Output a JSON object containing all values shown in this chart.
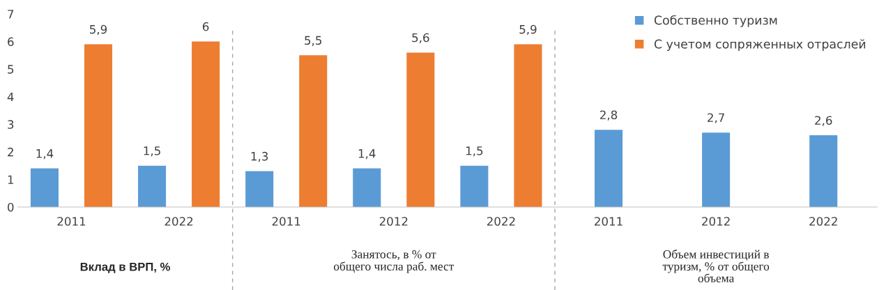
{
  "chart_data": {
    "type": "bar",
    "categories": [
      "2011",
      "2022",
      "2011",
      "2012",
      "2022",
      "2011",
      "2012",
      "2022"
    ],
    "series": [
      {
        "name": "Собственно туризм",
        "color": "#5b9bd5",
        "values": [
          1.4,
          1.5,
          1.3,
          1.4,
          1.5,
          2.8,
          2.7,
          2.6
        ],
        "value_labels": [
          "1,4",
          "1,5",
          "1,3",
          "1,4",
          "1,5",
          "2,8",
          "2,7",
          "2,6"
        ]
      },
      {
        "name": "С учетом сопряженных отраслей",
        "color": "#ed7d31",
        "values": [
          5.9,
          6,
          5.5,
          5.6,
          5.9,
          null,
          null,
          null
        ],
        "value_labels": [
          "5,9",
          "6",
          "5,5",
          "5,6",
          "5,9",
          null,
          null,
          null
        ]
      }
    ],
    "ylim": [
      0,
      7
    ],
    "yticks": [
      0,
      1,
      2,
      3,
      4,
      5,
      6,
      7
    ],
    "annotations": [
      "Вклад в ВРП, %",
      "Занятось, в % от\nобщего числа раб. мест",
      "Объем инвестиций в\nтуризм, % от общего\nобъема"
    ],
    "grid": false,
    "legend": "top right"
  }
}
